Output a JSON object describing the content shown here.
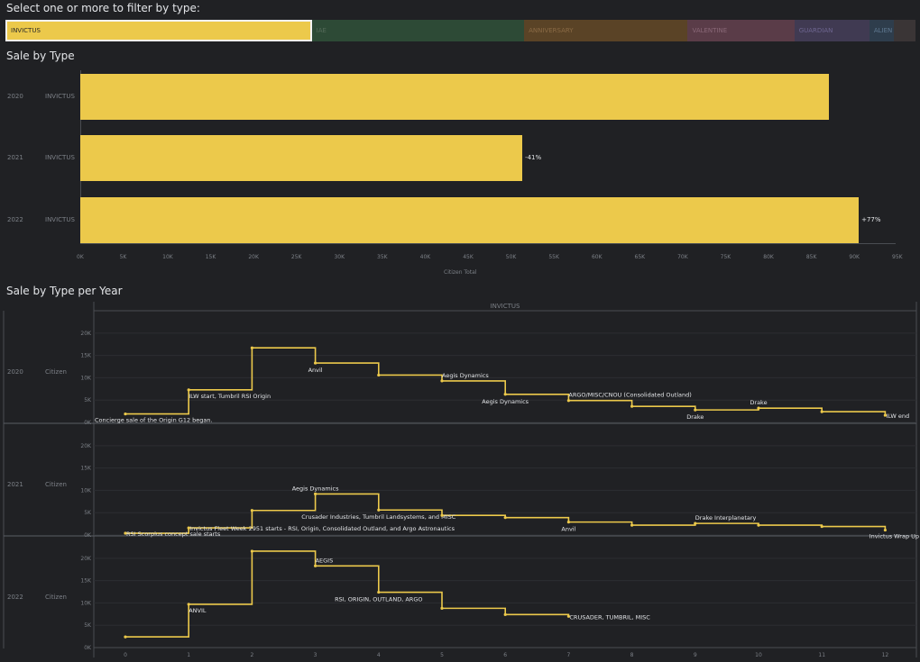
{
  "filter": {
    "title": "Select one or more to filter by type:",
    "chips": [
      {
        "label": "INVICTUS",
        "color": "#ecc94b",
        "text_color": "#2a2a2a",
        "selected": true,
        "weight": 339
      },
      {
        "label": "IAE",
        "color": "#2d4a36",
        "text_color": "#556b5a",
        "selected": false,
        "weight": 235
      },
      {
        "label": "ANNIVERSARY",
        "color": "#5a4326",
        "text_color": "#8a6a45",
        "selected": false,
        "weight": 181
      },
      {
        "label": "VALENTINE",
        "color": "#5a3c48",
        "text_color": "#8a6878",
        "selected": false,
        "weight": 118
      },
      {
        "label": "GUARDIAN",
        "color": "#403a52",
        "text_color": "#6e6690",
        "selected": false,
        "weight": 83
      },
      {
        "label": "ALIEN",
        "color": "#2e3d4c",
        "text_color": "#5f7890",
        "selected": false,
        "weight": 27
      },
      {
        "label": "",
        "color": "#3a3536",
        "text_color": "#3a3536",
        "selected": false,
        "weight": 24
      }
    ]
  },
  "sale_by_type": {
    "title": "Sale by Type",
    "x_axis_title": "Citizen Total",
    "bar_color": "#ecc94b",
    "rows": [
      {
        "year": "2020",
        "type": "INVICTUS",
        "change": ""
      },
      {
        "year": "2021",
        "type": "INVICTUS",
        "change": "-41%"
      },
      {
        "year": "2022",
        "type": "INVICTUS",
        "change": "+77%"
      }
    ]
  },
  "sale_per_year": {
    "title": "Sale by Type per Year",
    "column_header": "INVICTUS",
    "measure_label": "Citizen",
    "line_color": "#ecc94b"
  },
  "chart_data": [
    {
      "type": "bar",
      "title": "Sale by Type",
      "orientation": "horizontal",
      "categories": [
        "2020",
        "2021",
        "2022"
      ],
      "series": [
        {
          "name": "INVICTUS",
          "values": [
            87200,
            51500,
            90700
          ]
        }
      ],
      "xlabel": "Citizen Total",
      "xlim": [
        0,
        95000
      ],
      "x_ticks": [
        "0K",
        "5K",
        "10K",
        "15K",
        "20K",
        "25K",
        "30K",
        "35K",
        "40K",
        "45K",
        "50K",
        "55K",
        "60K",
        "65K",
        "70K",
        "75K",
        "80K",
        "85K",
        "90K",
        "95K"
      ]
    },
    {
      "type": "line",
      "title": "Sale by Type per Year",
      "step": true,
      "x_ticks": [
        "0",
        "1",
        "2",
        "3",
        "4",
        "5",
        "6",
        "7",
        "8",
        "9",
        "10",
        "11",
        "12"
      ],
      "y_ticks": [
        "0K",
        "5K",
        "10K",
        "15K",
        "20K"
      ],
      "ylim": [
        0,
        23000
      ],
      "panels": [
        {
          "year": "2020",
          "ylabel": "Citizen",
          "points": [
            {
              "x": 0,
              "y": 1900,
              "label": "Concierge sale of the Origin G12 began.",
              "label_pos": "below"
            },
            {
              "x": 1,
              "y": 7300,
              "label": "ILW start, Tumbril RSI Origin",
              "label_pos": "below"
            },
            {
              "x": 2,
              "y": 16700,
              "label": "",
              "label_pos": "below"
            },
            {
              "x": 3,
              "y": 13300,
              "label": "Anvil",
              "label_pos": "below-left"
            },
            {
              "x": 4,
              "y": 10600,
              "label": "",
              "label_pos": "below"
            },
            {
              "x": 5,
              "y": 9300,
              "label": "Aegis Dynamics",
              "label_pos": "above"
            },
            {
              "x": 6,
              "y": 6300,
              "label": "Aegis Dynamics",
              "label_pos": "below-left"
            },
            {
              "x": 7,
              "y": 4900,
              "label": "ARGO/MISC/CNOU (Consolidated Outland)",
              "label_pos": "above"
            },
            {
              "x": 8,
              "y": 3600,
              "label": "",
              "label_pos": "below"
            },
            {
              "x": 9,
              "y": 2800,
              "label": "Drake",
              "label_pos": "below-left"
            },
            {
              "x": 10,
              "y": 3200,
              "label": "Drake",
              "label_pos": "above-left"
            },
            {
              "x": 11,
              "y": 2400,
              "label": "",
              "label_pos": "below"
            },
            {
              "x": 12,
              "y": 1600,
              "label": "ILW end",
              "label_pos": "right"
            }
          ]
        },
        {
          "year": "2021",
          "ylabel": "Citizen",
          "points": [
            {
              "x": 0,
              "y": 400,
              "label": "RSI Scorpius concept sale starts",
              "label_pos": "right"
            },
            {
              "x": 1,
              "y": 1600,
              "label": "Invictus Fleet Week 2951 starts - RSI, Origin, Consolidated Outland, and Argo Astronautics",
              "label_pos": "right"
            },
            {
              "x": 2,
              "y": 5500,
              "label": "",
              "label_pos": "below"
            },
            {
              "x": 3,
              "y": 9200,
              "label": "Aegis Dynamics",
              "label_pos": "above-left"
            },
            {
              "x": 4,
              "y": 5600,
              "label": "Crusader Industries, Tumbril Landsystems, and MISC",
              "label_pos": "below-left"
            },
            {
              "x": 5,
              "y": 4400,
              "label": "",
              "label_pos": "below"
            },
            {
              "x": 6,
              "y": 3900,
              "label": "",
              "label_pos": "below"
            },
            {
              "x": 7,
              "y": 2900,
              "label": "Anvil",
              "label_pos": "below-left"
            },
            {
              "x": 8,
              "y": 2200,
              "label": "",
              "label_pos": "below"
            },
            {
              "x": 9,
              "y": 2600,
              "label": "Drake Interplanetary",
              "label_pos": "above"
            },
            {
              "x": 10,
              "y": 2200,
              "label": "",
              "label_pos": "below"
            },
            {
              "x": 11,
              "y": 1900,
              "label": "",
              "label_pos": "below"
            },
            {
              "x": 12,
              "y": 1100,
              "label": "Invictus Wrap Up",
              "label_pos": "below-right"
            }
          ]
        },
        {
          "year": "2022",
          "ylabel": "Citizen",
          "points": [
            {
              "x": 0,
              "y": 2400,
              "label": "",
              "label_pos": "below"
            },
            {
              "x": 1,
              "y": 9700,
              "label": "ANVIL",
              "label_pos": "below"
            },
            {
              "x": 2,
              "y": 21600,
              "label": "",
              "label_pos": "below"
            },
            {
              "x": 3,
              "y": 18300,
              "label": "AEGIS",
              "label_pos": "above"
            },
            {
              "x": 4,
              "y": 12400,
              "label": "RSI, ORIGIN, OUTLAND, ARGO",
              "label_pos": "below-left"
            },
            {
              "x": 5,
              "y": 8800,
              "label": "",
              "label_pos": "below"
            },
            {
              "x": 6,
              "y": 7400,
              "label": "",
              "label_pos": "below"
            },
            {
              "x": 7,
              "y": 7000,
              "label": "CRUSADER, TUMBRIL, MISC",
              "label_pos": "right"
            }
          ]
        }
      ]
    }
  ]
}
